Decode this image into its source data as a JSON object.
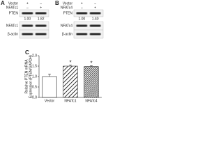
{
  "panels": {
    "a": {
      "label": "A",
      "rows": [
        {
          "name": "Vector",
          "marks": [
            "+",
            "–"
          ]
        },
        {
          "name": "NFATc1",
          "marks": [
            "–",
            "+"
          ]
        }
      ],
      "bands": [
        "PTEN",
        "NFATc1",
        "β-actin"
      ],
      "ratios": [
        "1.00",
        "1.82"
      ]
    },
    "b": {
      "label": "B",
      "rows": [
        {
          "name": "Vector",
          "marks": [
            "+",
            "–"
          ]
        },
        {
          "name": "NFATc4",
          "marks": [
            "–",
            "+"
          ]
        }
      ],
      "bands": [
        "PTEN",
        "NFATc4",
        "β-actin"
      ],
      "ratios": [
        "1.00",
        "1.40"
      ]
    }
  },
  "chart_data": {
    "type": "bar",
    "panel_label": "C",
    "y_label": [
      "Relative PTEN mRNA",
      "Expression (PTEN/GAPDH)"
    ],
    "categories": [
      "Vector",
      "NFATc1",
      "NFATc4"
    ],
    "values": [
      1.0,
      1.5,
      1.48
    ],
    "errors": [
      0.12,
      0.05,
      0.04
    ],
    "significance": [
      null,
      "*",
      "*"
    ],
    "fills": [
      "white",
      "hatch",
      "hatch-dense"
    ],
    "ylim": [
      0,
      2
    ],
    "yticks": [
      {
        "value": 0,
        "label": "0.0"
      },
      0.5,
      {
        "value": 1,
        "label": "1.0"
      },
      1.5,
      {
        "value": 2,
        "label": "2.0"
      }
    ]
  }
}
